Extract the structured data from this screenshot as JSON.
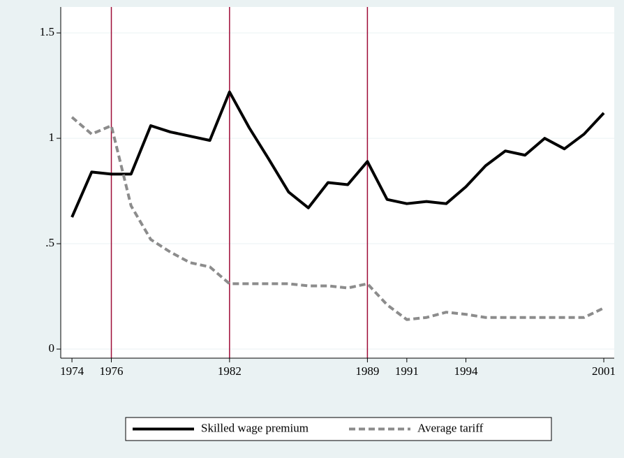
{
  "chart_data": {
    "type": "line",
    "x": [
      1974,
      1975,
      1976,
      1977,
      1978,
      1979,
      1980,
      1981,
      1982,
      1983,
      1984,
      1985,
      1986,
      1987,
      1988,
      1989,
      1990,
      1991,
      1992,
      1993,
      1994,
      1995,
      1996,
      1997,
      1998,
      1999,
      2000,
      2001
    ],
    "series": [
      {
        "name": "Skilled wage premium",
        "color": "#000000",
        "dash": false,
        "values": [
          0.626,
          0.84,
          0.83,
          0.83,
          1.06,
          1.03,
          1.01,
          0.99,
          1.22,
          1.05,
          0.9,
          0.745,
          0.67,
          0.79,
          0.78,
          0.89,
          0.71,
          0.69,
          0.7,
          0.69,
          0.77,
          0.87,
          0.94,
          0.92,
          1.0,
          0.95,
          1.02,
          1.12
        ]
      },
      {
        "name": "Average tariff",
        "color": "#8c8c8c",
        "dash": true,
        "values": [
          1.1,
          1.02,
          1.06,
          0.68,
          0.52,
          0.46,
          0.41,
          0.39,
          0.31,
          0.31,
          0.31,
          0.31,
          0.3,
          0.3,
          0.29,
          0.31,
          0.21,
          0.14,
          0.15,
          0.175,
          0.165,
          0.15,
          0.15,
          0.15,
          0.15,
          0.15,
          0.15,
          0.195
        ]
      }
    ],
    "xlim": [
      1973.43,
      2001.53
    ],
    "ylim": [
      -0.043,
      1.623
    ],
    "xticks": [
      1974,
      1976,
      1982,
      1989,
      1991,
      1994,
      2001
    ],
    "yticks": [
      0,
      {
        "value": 0.5,
        "label": ".5"
      },
      1,
      1.5
    ],
    "xlines": [
      1976,
      1982,
      1989
    ],
    "xline_color": "#9e0b36",
    "grid": true,
    "legend": "bottom"
  }
}
